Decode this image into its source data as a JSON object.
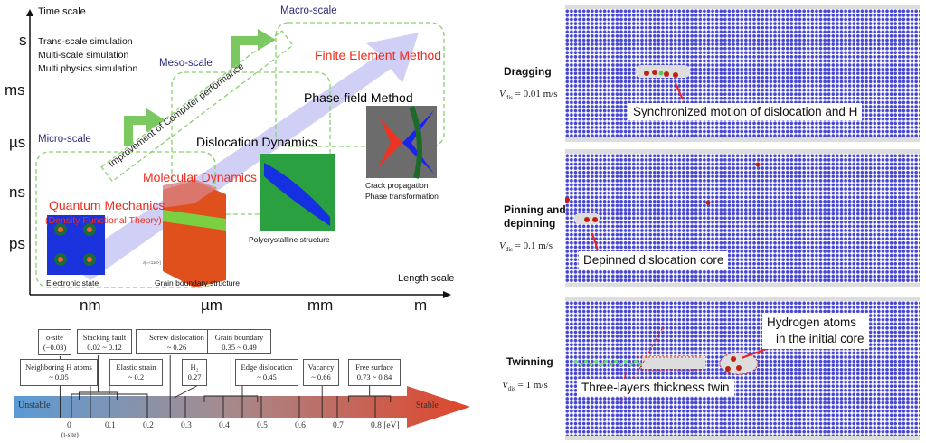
{
  "multiscale": {
    "y_axis_label": "Time scale",
    "x_axis_label": "Length scale",
    "time_ticks": [
      "s",
      "ms",
      "µs",
      "ns",
      "ps"
    ],
    "length_ticks": [
      "nm",
      "µm",
      "mm",
      "m"
    ],
    "notes": [
      "Trans-scale simulation",
      "Multi-scale simulation",
      "Multi physics simulation"
    ],
    "scales": {
      "micro": "Micro-scale",
      "meso": "Meso-scale",
      "macro": "Macro-scale"
    },
    "methods": {
      "fem": "Finite Element Method",
      "pf": "Phase-field Method",
      "dd": "Dislocation Dynamics",
      "md": "Molecular Dynamics",
      "qm": "Quantum Mechanics",
      "dft": "(Density Functional Theory)"
    },
    "banner": "Improvement of Computer performance",
    "captions": {
      "electronic": "Electronic state",
      "grain": "Grain boundary structure",
      "poly": "Polycrystalline structure",
      "crack1": "Crack propagation",
      "crack2": "Phase transformation",
      "axes_label": "z[=<110>]"
    }
  },
  "energy_scale": {
    "unstable": "Unstable",
    "stable": "Stable",
    "ticks": [
      "0",
      "0.1",
      "0.2",
      "0.3",
      "0.4",
      "0.5",
      "0.6",
      "0.7",
      "0.8 [eV]"
    ],
    "t_site": "(t-site)",
    "boxes": [
      {
        "l1": "o-site",
        "l2": "(−0.03)"
      },
      {
        "l1": "Stacking fault",
        "l2": "0.02 ~ 0.12"
      },
      {
        "l1": "Screw dislocation",
        "l2": "~ 0.26"
      },
      {
        "l1": "Grain boundary",
        "l2": "0.35 ~ 0.49"
      },
      {
        "l1": "Neighboring H atoms",
        "l2": "~ 0.05"
      },
      {
        "l1": "Elastic strain",
        "l2": "~ 0.2"
      },
      {
        "l1": "H₂",
        "l2": "0.27"
      },
      {
        "l1": "Edge dislocation",
        "l2": "~ 0.45"
      },
      {
        "l1": "Vacancy",
        "l2": "~ 0.66"
      },
      {
        "l1": "Free surface",
        "l2": "0.73 ~ 0.84"
      }
    ],
    "colors": {
      "start": "#5b9bd5",
      "end": "#e0452a"
    }
  },
  "simulations": [
    {
      "mode": "Dragging",
      "vdis": "V",
      "sub": "dis",
      "eq": " = 0.01 m/s",
      "callout": "Synchronized motion of dislocation and H"
    },
    {
      "mode": "Pinning and depinning",
      "vdis": "V",
      "sub": "dis",
      "eq": " = 0.1 m/s",
      "callout": "Depinned dislocation core"
    },
    {
      "mode": "Twinning",
      "vdis": "V",
      "sub": "dis",
      "eq": " = 1 m/s",
      "callout": "Three-layers thickness twin",
      "callout2a": "Hydrogen atoms",
      "callout2b": "in the initial core"
    }
  ]
}
